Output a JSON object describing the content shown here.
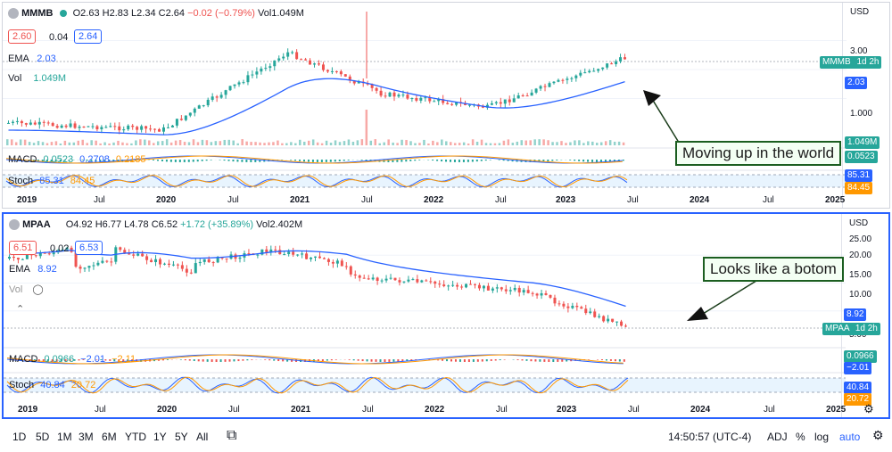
{
  "pane1": {
    "symbol": "MMMB",
    "ohlc": "O2.63 H2.83 L2.34 C2.64",
    "change": "−0.02 (−0.79%)",
    "volume": "Vol1.049M",
    "bid": "2.60",
    "spread": "0.04",
    "ask": "2.64",
    "ema_label": "EMA",
    "ema_value": "2.03",
    "vol_label": "Vol",
    "vol_value": "1.049M",
    "macd_label": "MACD",
    "macd_values": [
      "0.0523",
      "0.2708",
      "0.2185"
    ],
    "stoch_label": "Stoch",
    "stoch_values": [
      "85.31",
      "84.45"
    ],
    "currency": "USD",
    "price_ticks": [
      "3.00",
      "2.00",
      "1.000"
    ],
    "tags": {
      "last_symbol": "MMMB",
      "last_interval": "1d 2h",
      "ema": "2.03",
      "vol": "1.049M",
      "macd": "0.0523",
      "stoch_k": "85.31",
      "stoch_d": "84.45"
    },
    "x_labels": [
      "2019",
      "Jul",
      "2020",
      "Jul",
      "2021",
      "Jul",
      "2022",
      "Jul",
      "2023",
      "Jul",
      "2024",
      "Jul",
      "2025"
    ],
    "annotation": "Moving up in the world"
  },
  "pane2": {
    "symbol": "MPAA",
    "ohlc": "O4.92 H6.77 L4.78 C6.52",
    "change": "+1.72 (+35.89%)",
    "volume": "Vol2.402M",
    "bid": "6.51",
    "spread": "0.02",
    "ask": "6.53",
    "ema_label": "EMA",
    "ema_value": "8.92",
    "vol_label": "Vol",
    "macd_label": "MACD",
    "macd_values": [
      "0.0966",
      "−2.01",
      "−2.11"
    ],
    "stoch_label": "Stoch",
    "stoch_values": [
      "40.84",
      "20.72"
    ],
    "currency": "USD",
    "price_ticks": [
      "25.00",
      "20.00",
      "15.00",
      "10.00",
      "5.00"
    ],
    "tags": {
      "last_symbol": "MPAA",
      "last_interval": "1d 2h",
      "ema": "8.92",
      "macd": "0.0966",
      "macd2": "−2.01",
      "stoch_k": "40.84",
      "stoch_d": "20.72"
    },
    "x_labels": [
      "2019",
      "Jul",
      "2020",
      "Jul",
      "2021",
      "Jul",
      "2022",
      "Jul",
      "2023",
      "Jul",
      "2024",
      "Jul",
      "2025"
    ],
    "annotation": "Looks like a botom"
  },
  "toolbar": {
    "ranges": [
      "1D",
      "5D",
      "1M",
      "3M",
      "6M",
      "YTD",
      "1Y",
      "5Y",
      "All"
    ],
    "time": "14:50:57 (UTC-4)",
    "adj": "ADJ",
    "percent": "%",
    "log": "log",
    "auto": "auto"
  },
  "colors": {
    "up": "#26a69a",
    "down": "#ef5350",
    "ema": "#2962ff",
    "macd_signal": "#ff9800",
    "annotation_border": "#1b5e20"
  }
}
